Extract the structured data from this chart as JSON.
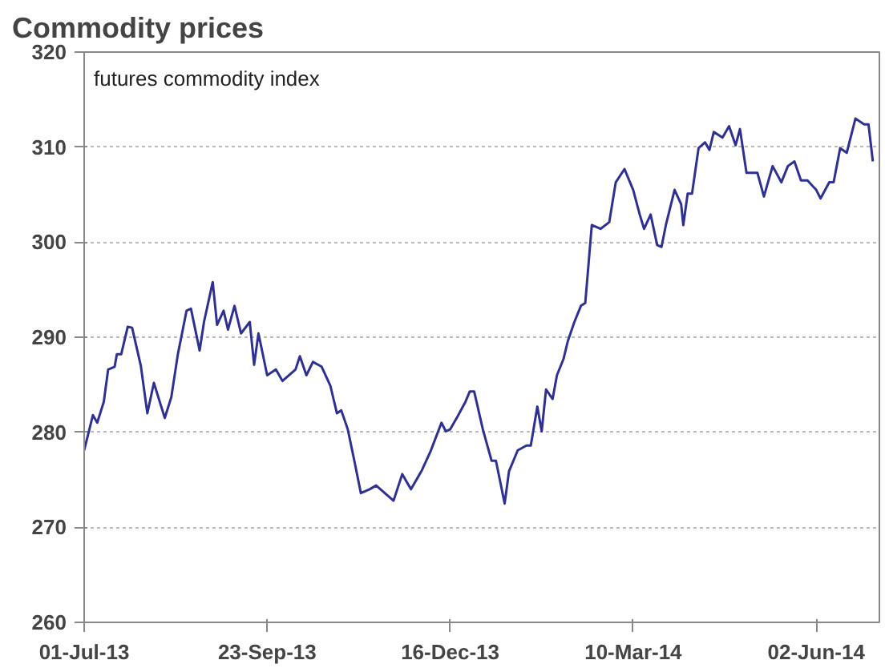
{
  "chart_data": {
    "type": "line",
    "title": "Commodity prices",
    "subtitle": "futures commodity index",
    "x": [
      "2013-07-01",
      "2013-07-05",
      "2013-07-07",
      "2013-07-10",
      "2013-07-12",
      "2013-07-15",
      "2013-07-16",
      "2013-07-18",
      "2013-07-21",
      "2013-07-23",
      "2013-07-27",
      "2013-07-30",
      "2013-08-02",
      "2013-08-07",
      "2013-08-10",
      "2013-08-13",
      "2013-08-17",
      "2013-08-19",
      "2013-08-23",
      "2013-08-25",
      "2013-08-29",
      "2013-08-31",
      "2013-09-03",
      "2013-09-05",
      "2013-09-08",
      "2013-09-11",
      "2013-09-15",
      "2013-09-17",
      "2013-09-19",
      "2013-09-23",
      "2013-09-27",
      "2013-09-30",
      "2013-10-06",
      "2013-10-08",
      "2013-10-11",
      "2013-10-14",
      "2013-10-18",
      "2013-10-22",
      "2013-10-25",
      "2013-10-27",
      "2013-10-30",
      "2013-11-02",
      "2013-11-05",
      "2013-11-09",
      "2013-11-12",
      "2013-11-16",
      "2013-11-20",
      "2013-11-24",
      "2013-11-28",
      "2013-12-03",
      "2013-12-07",
      "2013-12-12",
      "2013-12-14",
      "2013-12-16",
      "2013-12-19",
      "2013-12-23",
      "2013-12-25",
      "2013-12-27",
      "2013-12-31",
      "2014-01-04",
      "2014-01-06",
      "2014-01-10",
      "2014-01-12",
      "2014-01-16",
      "2014-01-20",
      "2014-01-22",
      "2014-01-25",
      "2014-01-27",
      "2014-01-29",
      "2014-02-01",
      "2014-02-03",
      "2014-02-06",
      "2014-02-08",
      "2014-02-11",
      "2014-02-14",
      "2014-02-16",
      "2014-02-19",
      "2014-02-23",
      "2014-02-27",
      "2014-03-02",
      "2014-03-06",
      "2014-03-10",
      "2014-03-13",
      "2014-03-15",
      "2014-03-18",
      "2014-03-21",
      "2014-03-23",
      "2014-03-25",
      "2014-03-29",
      "2014-04-01",
      "2014-04-02",
      "2014-04-04",
      "2014-04-06",
      "2014-04-09",
      "2014-04-12",
      "2014-04-14",
      "2014-04-16",
      "2014-04-20",
      "2014-04-23",
      "2014-04-26",
      "2014-04-28",
      "2014-05-01",
      "2014-05-06",
      "2014-05-09",
      "2014-05-13",
      "2014-05-17",
      "2014-05-20",
      "2014-05-23",
      "2014-05-26",
      "2014-05-29",
      "2014-06-02",
      "2014-06-04",
      "2014-06-08",
      "2014-06-10",
      "2014-06-13",
      "2014-06-16",
      "2014-06-20",
      "2014-06-24",
      "2014-06-26",
      "2014-06-28"
    ],
    "series": [
      {
        "color": "#2e3192",
        "values": [
          278.1,
          281.8,
          281.0,
          283.2,
          286.6,
          286.9,
          288.2,
          288.2,
          291.1,
          291.0,
          287.0,
          282.0,
          285.2,
          281.5,
          283.7,
          288.2,
          292.8,
          293.0,
          288.6,
          291.6,
          295.8,
          291.3,
          292.8,
          290.8,
          293.3,
          290.4,
          291.6,
          287.1,
          290.4,
          286.0,
          286.6,
          285.4,
          286.6,
          288.0,
          286.0,
          287.4,
          286.9,
          284.9,
          282.0,
          282.3,
          280.3,
          277.0,
          273.6,
          274.0,
          274.4,
          273.6,
          272.8,
          275.6,
          274.0,
          276.0,
          278.0,
          281.0,
          280.1,
          280.3,
          281.5,
          283.2,
          284.3,
          284.3,
          280.3,
          277.0,
          277.0,
          272.5,
          275.9,
          278.1,
          278.6,
          278.6,
          282.7,
          280.1,
          284.5,
          283.5,
          286.0,
          287.7,
          289.6,
          291.6,
          293.3,
          293.6,
          301.8,
          301.4,
          302.1,
          306.3,
          307.7,
          305.5,
          302.9,
          301.4,
          302.9,
          299.7,
          299.5,
          301.8,
          305.5,
          304.0,
          301.8,
          305.1,
          305.1,
          309.9,
          310.5,
          309.7,
          311.6,
          311.0,
          312.2,
          310.2,
          311.9,
          307.3,
          307.3,
          304.8,
          308.0,
          306.3,
          308.0,
          308.5,
          306.5,
          306.5,
          305.5,
          304.6,
          306.3,
          306.3,
          309.9,
          309.4,
          313.0,
          312.4,
          312.4,
          308.5
        ]
      }
    ],
    "xlim": [
      "2013-07-01",
      "2014-07-01"
    ],
    "xticks": [
      {
        "value": "2013-07-01",
        "label": "01-Jul-13"
      },
      {
        "value": "2013-09-23",
        "label": "23-Sep-13"
      },
      {
        "value": "2013-12-16",
        "label": "16-Dec-13"
      },
      {
        "value": "2014-03-10",
        "label": "10-Mar-14"
      },
      {
        "value": "2014-06-02",
        "label": "02-Jun-14"
      }
    ],
    "ylim": [
      260,
      320
    ],
    "yticks": [
      260,
      270,
      280,
      290,
      300,
      310,
      320
    ],
    "grid": "y",
    "marker": "none",
    "line_style": "solid"
  }
}
